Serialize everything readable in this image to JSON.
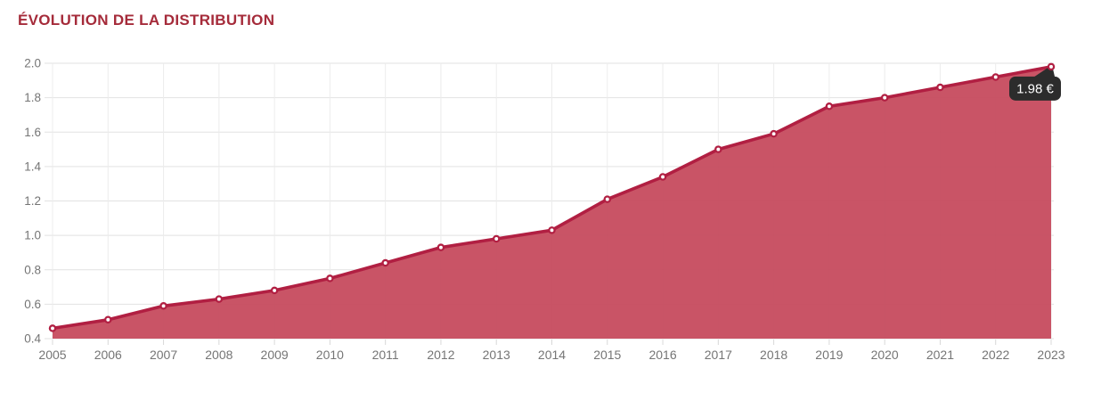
{
  "page": {
    "title": "ÉVOLUTION DE LA DISTRIBUTION"
  },
  "chart_data": {
    "type": "area",
    "title": "ÉVOLUTION DE LA DISTRIBUTION",
    "categories": [
      "2005",
      "2006",
      "2007",
      "2008",
      "2009",
      "2010",
      "2011",
      "2012",
      "2013",
      "2014",
      "2015",
      "2016",
      "2017",
      "2018",
      "2019",
      "2020",
      "2021",
      "2022",
      "2023"
    ],
    "values": [
      0.46,
      0.51,
      0.59,
      0.63,
      0.68,
      0.75,
      0.84,
      0.93,
      0.98,
      1.03,
      1.21,
      1.34,
      1.5,
      1.59,
      1.75,
      1.8,
      1.86,
      1.92,
      1.98
    ],
    "unit": "€",
    "xlabel": "",
    "ylabel": "",
    "ylim": [
      0.4,
      2.0
    ],
    "ytick_step": 0.2,
    "ytick_labels": [
      "0.4",
      "0.6",
      "0.8",
      "1.0",
      "1.2",
      "1.4",
      "1.6",
      "1.8",
      "2.0"
    ],
    "grid": true,
    "legend": false,
    "markers": true,
    "tooltip": {
      "category": "2023",
      "point_index": 18,
      "label": "1.98 €"
    },
    "colors": {
      "title": "#a52b3a",
      "line": "#b11f42",
      "fill": "#c64b5e",
      "marker_fill": "#ffffff",
      "marker_ring": "#b11f42",
      "grid_horizontal": "#e2e2e2",
      "grid_vertical": "#ececec",
      "tick": "#d8d8d8",
      "axis_text": "#757575",
      "tooltip_bg": "#2c2c2c",
      "tooltip_text": "#ffffff"
    }
  }
}
